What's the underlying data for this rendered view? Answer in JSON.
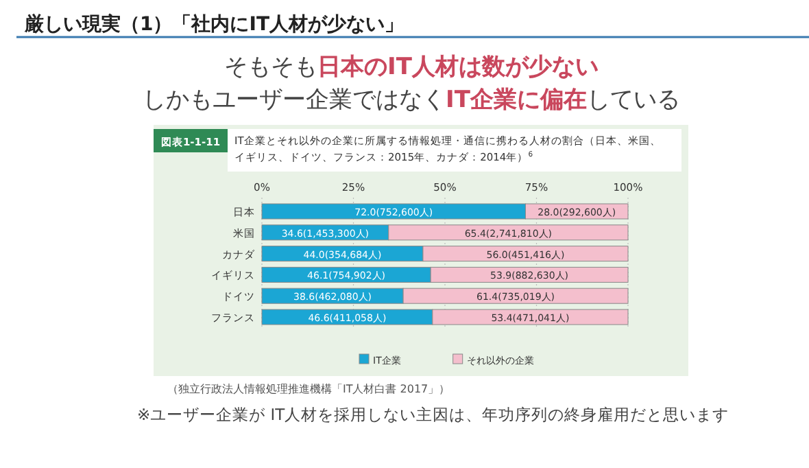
{
  "chart_data": {
    "type": "bar",
    "orientation": "horizontal",
    "stacked": true,
    "title": "IT企業とそれ以外の企業に所属する情報処理・通信に携わる人材の割合（日本、米国、イギリス、ドイツ、フランス：2015年、カナダ：2014年）$^{6}$",
    "categories": [
      "日本",
      "米国",
      "カナダ",
      "イギリス",
      "ドイツ",
      "フランス"
    ],
    "series": [
      {
        "name": "IT企業",
        "color": "#1ba6d4",
        "values": [
          72.0,
          34.6,
          44.0,
          46.1,
          38.6,
          46.6
        ],
        "value_labels": [
          "72.0(752,600人)",
          "34.6(1,453,300人)",
          "44.0(354,684人)",
          "46.1(754,902人)",
          "38.6(462,080人)",
          "46.6(411,058人)"
        ]
      },
      {
        "name": "それ以外の企業",
        "color": "#f4bfcd",
        "values": [
          28.0,
          65.4,
          56.0,
          53.9,
          61.4,
          53.4
        ],
        "value_labels": [
          "28.0(292,600人)",
          "65.4(2,741,810人)",
          "56.0(451,416人)",
          "53.9(882,630人)",
          "61.4(735,019人)",
          "53.4(471,041人)"
        ]
      }
    ],
    "xlim": [
      0,
      100
    ],
    "xticks": [
      {
        "value": 0,
        "label": "0%"
      },
      {
        "value": 25,
        "label": "25%"
      },
      {
        "value": 50,
        "label": "50%"
      },
      {
        "value": 75,
        "label": "75%"
      },
      {
        "value": 100,
        "label": "100%"
      }
    ],
    "grid": "x",
    "legend": "bottom",
    "annotations": [
      "厳しい現実（1）「社内にIT人材が少ない」",
      "そもそも**日本のIT人材は数が少ない**",
      "しかもユーザー企業ではなく**IT企業に偏在**している",
      "図表1-1-11",
      "（独立行政法人情報処理推進機構「IT人材白書 2017」）",
      "※ユーザー企業が IT人材を採用しない主因は、年功序列の終身雇用だと思います"
    ]
  }
}
